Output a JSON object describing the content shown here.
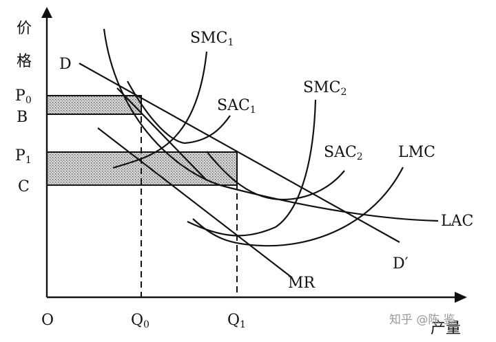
{
  "axes": {
    "y_label": "价格",
    "x_label": "产量",
    "origin": "O"
  },
  "price_labels": {
    "p0": {
      "main": "P",
      "sub": "0"
    },
    "b": "B",
    "p1": {
      "main": "P",
      "sub": "1"
    },
    "c": "C"
  },
  "quantity_labels": {
    "q0": {
      "main": "Q",
      "sub": "0"
    },
    "q1": {
      "main": "Q",
      "sub": "1"
    }
  },
  "curve_labels": {
    "d": "D",
    "d_prime": "D′",
    "smc1": {
      "main": "SMC",
      "sub": "1"
    },
    "sac1": {
      "main": "SAC",
      "sub": "1"
    },
    "smc2": {
      "main": "SMC",
      "sub": "2"
    },
    "sac2": {
      "main": "SAC",
      "sub": "2"
    },
    "lmc": "LMC",
    "lac": "LAC",
    "mr": "MR"
  },
  "watermark": "知乎 @陈 鉴"
}
